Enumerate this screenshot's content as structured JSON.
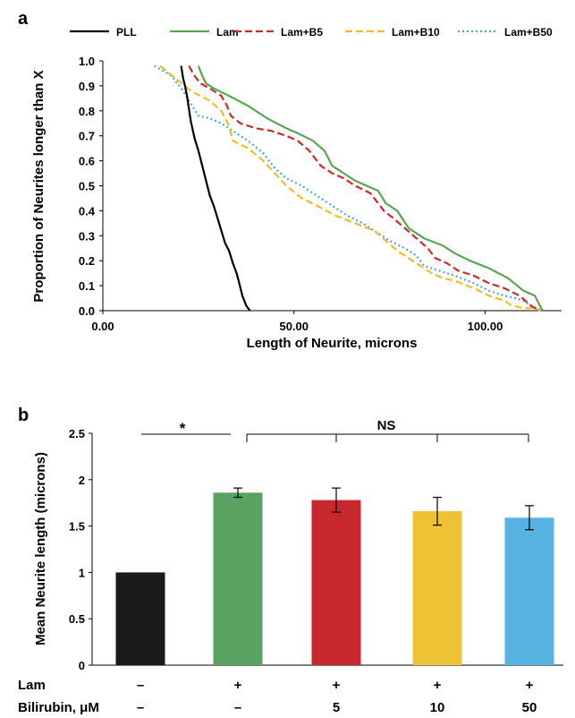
{
  "chart_data": [
    {
      "panel": "a",
      "type": "line",
      "xlabel": "Length of Neurite, microns",
      "ylabel": "Proportion of Neurites longer than X",
      "xlim": [
        0,
        120
      ],
      "ylim": [
        0,
        1.0
      ],
      "x_ticks": [
        0,
        50,
        100
      ],
      "x_tick_labels": [
        "0.00",
        "50.00",
        "100.00"
      ],
      "y_ticks": [
        0,
        0.1,
        0.2,
        0.3,
        0.4,
        0.5,
        0.6,
        0.7,
        0.8,
        0.9,
        1.0
      ],
      "y_tick_labels": [
        "0.0",
        "0.1",
        "0.2",
        "0.3",
        "0.4",
        "0.5",
        "0.6",
        "0.7",
        "0.8",
        "0.9",
        "1.0"
      ],
      "legend_position": "top",
      "series": [
        {
          "name": "PLL",
          "color": "#000000",
          "dash": "solid",
          "x": [
            20.5,
            21.0,
            21.5,
            22.0,
            22.5,
            23.0,
            24.0,
            25.0,
            26.0,
            27.0,
            28.0,
            29.0,
            30.0,
            31.0,
            32.0,
            33.0,
            34.0,
            35.0,
            35.5,
            36.0,
            36.5,
            37.0,
            37.5,
            38.0,
            38.5
          ],
          "y": [
            0.98,
            0.93,
            0.9,
            0.86,
            0.81,
            0.76,
            0.69,
            0.64,
            0.58,
            0.52,
            0.46,
            0.42,
            0.37,
            0.32,
            0.27,
            0.24,
            0.19,
            0.15,
            0.12,
            0.09,
            0.06,
            0.04,
            0.02,
            0.01,
            0.0
          ]
        },
        {
          "name": "Lam",
          "color": "#5aa552",
          "dash": "solid",
          "x": [
            25.0,
            26.0,
            27.0,
            29.0,
            33.0,
            38.0,
            43.0,
            48.0,
            51.0,
            55.0,
            58.0,
            60.0,
            63.0,
            66.0,
            69.0,
            72.0,
            74.0,
            77.0,
            80.0,
            84.0,
            89.0,
            92.0,
            96.0,
            101.0,
            106.0,
            110.0,
            113.0,
            114.0,
            115.0
          ],
          "y": [
            0.98,
            0.94,
            0.91,
            0.89,
            0.86,
            0.82,
            0.77,
            0.73,
            0.71,
            0.68,
            0.64,
            0.58,
            0.55,
            0.52,
            0.5,
            0.48,
            0.43,
            0.4,
            0.33,
            0.29,
            0.26,
            0.23,
            0.2,
            0.17,
            0.13,
            0.08,
            0.06,
            0.03,
            0.0
          ]
        },
        {
          "name": "Lam+B5",
          "color": "#d0282c",
          "dash": "dashed",
          "x": [
            22.5,
            24.0,
            25.5,
            28.0,
            31.0,
            32.5,
            33.5,
            36.0,
            40.0,
            44.0,
            48.0,
            51.0,
            54.0,
            57.0,
            60.0,
            63.0,
            66.0,
            70.0,
            72.0,
            73.5,
            76.0,
            79.0,
            82.0,
            85.0,
            87.0,
            90.0,
            93.0,
            97.0,
            101.0,
            105.0,
            109.0,
            112.0,
            114.0
          ],
          "y": [
            0.98,
            0.94,
            0.91,
            0.89,
            0.86,
            0.82,
            0.78,
            0.75,
            0.73,
            0.72,
            0.7,
            0.68,
            0.64,
            0.58,
            0.55,
            0.53,
            0.5,
            0.47,
            0.43,
            0.4,
            0.37,
            0.33,
            0.29,
            0.25,
            0.21,
            0.19,
            0.16,
            0.14,
            0.11,
            0.09,
            0.06,
            0.02,
            0.0
          ]
        },
        {
          "name": "Lam+B10",
          "color": "#f0bd24",
          "dash": "dashed",
          "x": [
            15.0,
            19.0,
            23.0,
            28.0,
            31.0,
            33.0,
            34.0,
            38.0,
            42.0,
            45.0,
            48.0,
            52.0,
            56.0,
            61.0,
            66.0,
            71.0,
            74.0,
            77.0,
            80.0,
            83.0,
            86.0,
            89.0,
            92.0,
            97.0,
            101.0,
            105.0,
            107.0,
            110.0,
            113.0,
            114.5
          ],
          "y": [
            0.98,
            0.93,
            0.88,
            0.84,
            0.8,
            0.74,
            0.68,
            0.65,
            0.6,
            0.55,
            0.5,
            0.45,
            0.42,
            0.38,
            0.35,
            0.32,
            0.28,
            0.24,
            0.21,
            0.18,
            0.15,
            0.13,
            0.12,
            0.09,
            0.06,
            0.04,
            0.02,
            0.01,
            0.01,
            0.0
          ]
        },
        {
          "name": "Lam+B50",
          "color": "#4ea6d8",
          "dash": "dotted",
          "x": [
            13.5,
            18.0,
            21.0,
            23.0,
            25.0,
            28.0,
            31.0,
            34.0,
            38.0,
            42.0,
            45.0,
            48.0,
            52.0,
            56.0,
            60.0,
            64.0,
            68.0,
            72.0,
            75.0,
            79.0,
            82.0,
            84.0,
            88.0,
            92.0,
            97.0,
            101.0,
            105.0,
            108.0,
            110.0,
            112.0,
            115.0
          ],
          "y": [
            0.98,
            0.94,
            0.88,
            0.83,
            0.78,
            0.77,
            0.75,
            0.72,
            0.68,
            0.63,
            0.57,
            0.53,
            0.5,
            0.46,
            0.42,
            0.38,
            0.35,
            0.31,
            0.28,
            0.25,
            0.22,
            0.18,
            0.16,
            0.14,
            0.11,
            0.08,
            0.06,
            0.05,
            0.04,
            0.02,
            0.0
          ]
        }
      ]
    },
    {
      "panel": "b",
      "type": "bar",
      "ylabel": "Mean Neurite length (microns)",
      "ylim": [
        0,
        2.5
      ],
      "y_ticks": [
        0,
        0.5,
        1,
        1.5,
        2,
        2.5
      ],
      "y_tick_labels": [
        "0",
        "0.5",
        "1",
        "1.5",
        "2",
        "2.5"
      ],
      "categories": [
        "PLL",
        "Lam",
        "Lam+B5",
        "Lam+B10",
        "Lam+B50"
      ],
      "values": [
        1.0,
        1.86,
        1.78,
        1.66,
        1.59
      ],
      "errors": [
        0,
        0.05,
        0.13,
        0.15,
        0.13
      ],
      "colors": [
        "#1a1a1a",
        "#59a261",
        "#c8272e",
        "#eec234",
        "#57b1e1"
      ],
      "row_labels": [
        "Lam",
        "Bilirubin, μM"
      ],
      "rows": [
        [
          "–",
          "+",
          "+",
          "+",
          "+"
        ],
        [
          "–",
          "–",
          "5",
          "10",
          "50"
        ]
      ],
      "annotations": {
        "significant": "*",
        "not_significant": "NS"
      }
    }
  ],
  "panel_labels": [
    "a",
    "b"
  ]
}
